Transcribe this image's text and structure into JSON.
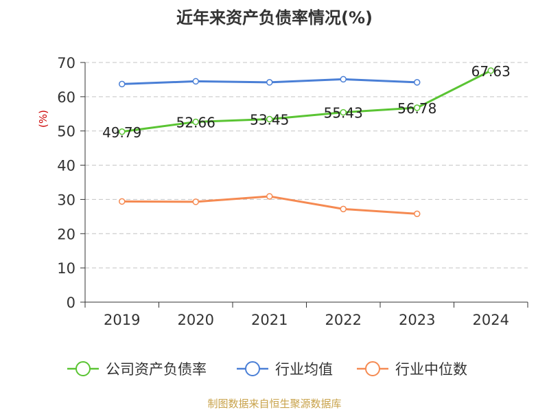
{
  "chart_data": {
    "type": "line",
    "title": "近年来资产负债率情况(%)",
    "ylabel": "(%)",
    "xlabel": "",
    "categories": [
      "2019",
      "2020",
      "2021",
      "2022",
      "2023",
      "2024"
    ],
    "ylim": [
      0,
      70
    ],
    "yticks": [
      0,
      10,
      20,
      30,
      40,
      50,
      60,
      70
    ],
    "grid": true,
    "legend_position": "bottom",
    "series": [
      {
        "name": "公司资产负债率",
        "color": "#5ac433",
        "values": [
          49.79,
          52.66,
          53.45,
          55.43,
          56.78,
          67.63
        ],
        "labels": [
          "49.79",
          "52.66",
          "53.45",
          "55.43",
          "56.78",
          "67.63"
        ]
      },
      {
        "name": "行业均值",
        "color": "#4a7fd6",
        "values": [
          63.7,
          64.5,
          64.2,
          65.1,
          64.2,
          null
        ]
      },
      {
        "name": "行业中位数",
        "color": "#f58a52",
        "values": [
          29.4,
          29.3,
          30.9,
          27.2,
          25.8,
          null
        ]
      }
    ]
  },
  "source": "制图数据来自恒生聚源数据库"
}
